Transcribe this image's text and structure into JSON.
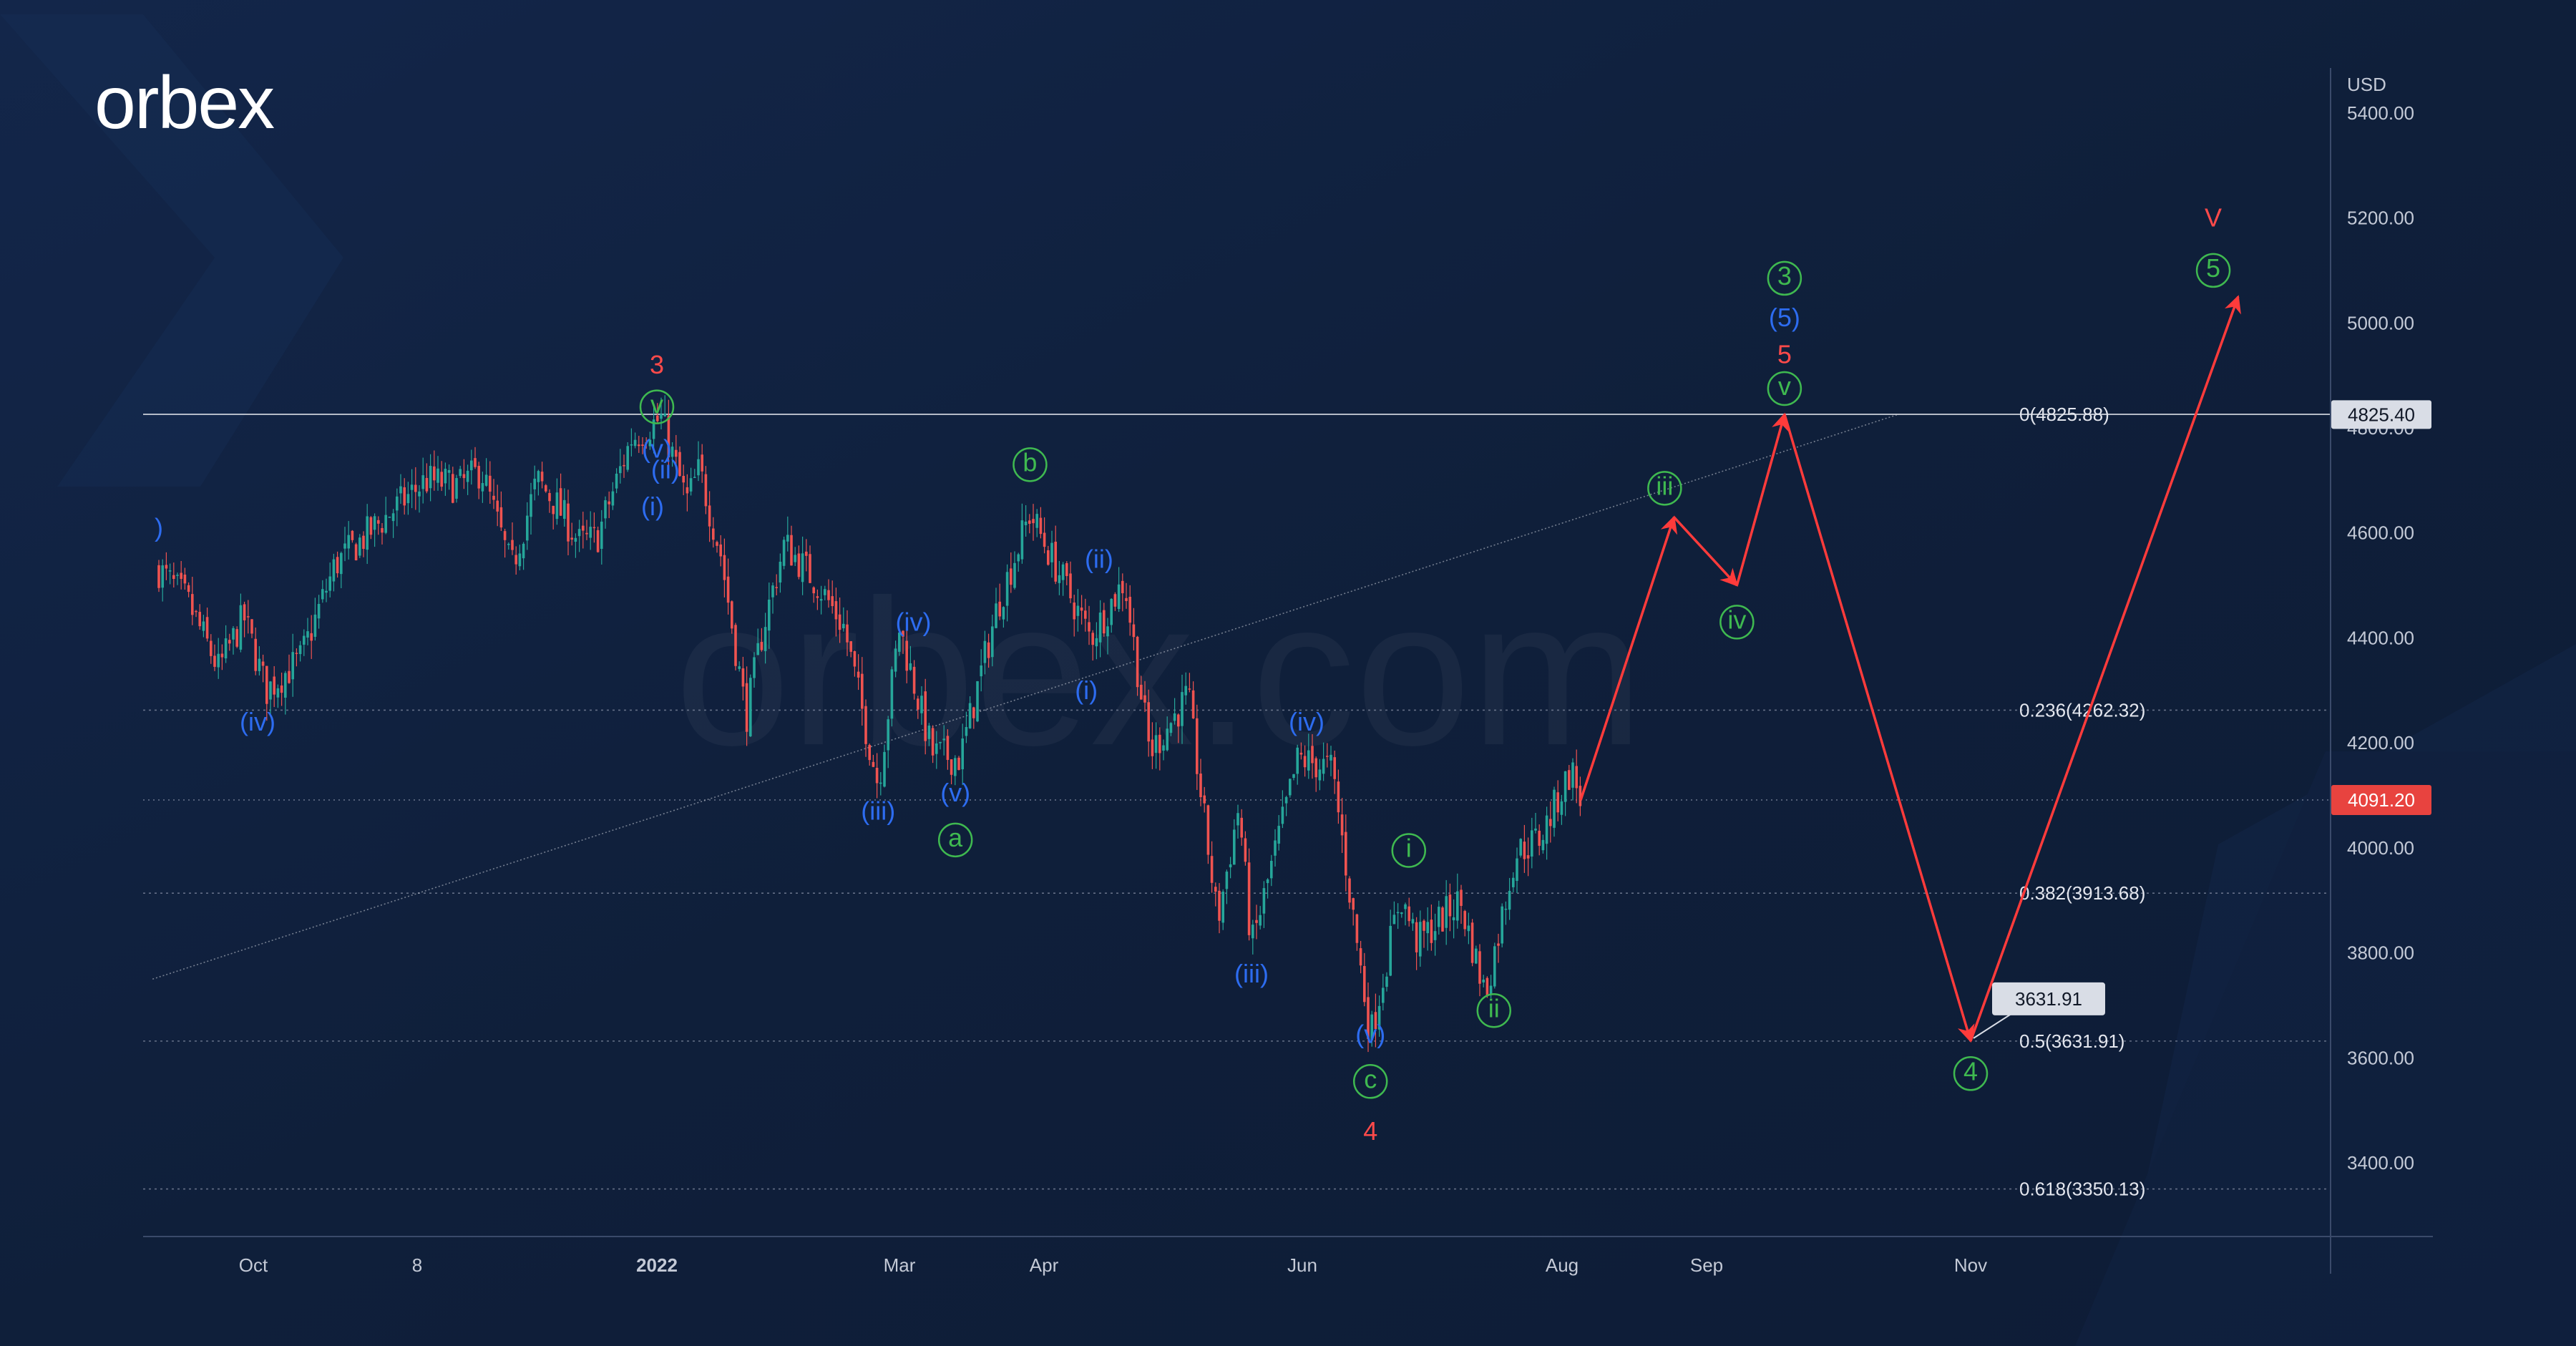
{
  "brand": {
    "logo_text": "orbex",
    "watermark": "orbex.com"
  },
  "colors": {
    "background": "#0f1f3a",
    "bull": "#26a69a",
    "bear": "#ef5350",
    "wave_red": "#ff4a4a",
    "wave_blue": "#2d6cf0",
    "wave_green": "#3fb950",
    "projection": "#ff3b3b",
    "current_price_badge": "#e8433f"
  },
  "chart_data": {
    "type": "candlestick",
    "symbol_currency": "USD",
    "y_axis": {
      "unit": "USD",
      "range": [
        3250,
        5480
      ],
      "ticks": [
        "5400.00",
        "5200.00",
        "5000.00",
        "4800.00",
        "4600.00",
        "4400.00",
        "4200.00",
        "4000.00",
        "3800.00",
        "3600.00",
        "3400.00"
      ]
    },
    "x_axis": {
      "ticks": [
        "Oct",
        "8",
        "2022",
        "Mar",
        "Apr",
        "Jun",
        "Aug",
        "Sep",
        "Nov"
      ]
    },
    "current_price": "4091.20",
    "level_badge": "4825.40",
    "fibonacci_levels": [
      {
        "label": "0(4825.88)",
        "value": 4825.88
      },
      {
        "label": "0.236(4262.32)",
        "value": 4262.32
      },
      {
        "label": "0.382(3913.68)",
        "value": 3913.68
      },
      {
        "label": "0.5(3631.91)",
        "value": 3631.91
      },
      {
        "label": "0.618(3350.13)",
        "value": 3350.13
      }
    ],
    "target_callout": "3631.91",
    "price_path": [
      {
        "date": "2021-09-01",
        "price": 4530
      },
      {
        "date": "2021-09-10",
        "price": 4470
      },
      {
        "date": "2021-09-20",
        "price": 4340
      },
      {
        "date": "2021-09-28",
        "price": 4440
      },
      {
        "date": "2021-10-04",
        "price": 4300
      },
      {
        "date": "2021-10-12",
        "price": 4360
      },
      {
        "date": "2021-10-20",
        "price": 4540
      },
      {
        "date": "2021-11-02",
        "price": 4640
      },
      {
        "date": "2021-11-10",
        "price": 4700
      },
      {
        "date": "2021-11-18",
        "price": 4690
      },
      {
        "date": "2021-11-23",
        "price": 4720
      },
      {
        "date": "2021-11-30",
        "price": 4530
      },
      {
        "date": "2021-12-06",
        "price": 4700
      },
      {
        "date": "2021-12-10",
        "price": 4660
      },
      {
        "date": "2021-12-16",
        "price": 4580
      },
      {
        "date": "2021-12-20",
        "price": 4590
      },
      {
        "date": "2021-12-28",
        "price": 4780
      },
      {
        "date": "2022-01-04",
        "price": 4818
      },
      {
        "date": "2022-01-10",
        "price": 4660
      },
      {
        "date": "2022-01-13",
        "price": 4720
      },
      {
        "date": "2022-01-18",
        "price": 4560
      },
      {
        "date": "2022-01-24",
        "price": 4250
      },
      {
        "date": "2022-01-28",
        "price": 4420
      },
      {
        "date": "2022-02-02",
        "price": 4580
      },
      {
        "date": "2022-02-10",
        "price": 4500
      },
      {
        "date": "2022-02-16",
        "price": 4420
      },
      {
        "date": "2022-02-24",
        "price": 4120
      },
      {
        "date": "2022-03-01",
        "price": 4420
      },
      {
        "date": "2022-03-08",
        "price": 4180
      },
      {
        "date": "2022-03-14",
        "price": 4170
      },
      {
        "date": "2022-03-22",
        "price": 4460
      },
      {
        "date": "2022-03-29",
        "price": 4637
      },
      {
        "date": "2022-04-06",
        "price": 4500
      },
      {
        "date": "2022-04-12",
        "price": 4400
      },
      {
        "date": "2022-04-20",
        "price": 4510
      },
      {
        "date": "2022-04-26",
        "price": 4180
      },
      {
        "date": "2022-05-05",
        "price": 4290
      },
      {
        "date": "2022-05-12",
        "price": 3860
      },
      {
        "date": "2022-05-17",
        "price": 4080
      },
      {
        "date": "2022-05-20",
        "price": 3810
      },
      {
        "date": "2022-05-31",
        "price": 4170
      },
      {
        "date": "2022-06-08",
        "price": 4150
      },
      {
        "date": "2022-06-17",
        "price": 3640
      },
      {
        "date": "2022-06-24",
        "price": 3910
      },
      {
        "date": "2022-06-28",
        "price": 3820
      },
      {
        "date": "2022-07-08",
        "price": 3900
      },
      {
        "date": "2022-07-14",
        "price": 3720
      },
      {
        "date": "2022-07-21",
        "price": 3990
      },
      {
        "date": "2022-07-27",
        "price": 4020
      },
      {
        "date": "2022-08-03",
        "price": 4150
      },
      {
        "date": "2022-08-05",
        "price": 4091
      }
    ],
    "projection": [
      {
        "date": "2022-08-05",
        "price": 4091
      },
      {
        "date": "2022-08-25",
        "price": 4630
      },
      {
        "date": "2022-09-08",
        "price": 4500
      },
      {
        "date": "2022-09-19",
        "price": 4826
      },
      {
        "date": "2022-11-01",
        "price": 3632
      },
      {
        "date": "2022-12-14",
        "price": 5050
      }
    ],
    "trendline": [
      {
        "date": "2021-08-30",
        "price": 3750
      },
      {
        "date": "2022-10-15",
        "price": 4825
      }
    ],
    "wave_labels": [
      {
        "text": "3",
        "style": "plain",
        "color": "red",
        "date": "2022-01-03",
        "price": 4920
      },
      {
        "text": "v",
        "style": "circle",
        "color": "green",
        "date": "2022-01-03",
        "price": 4840
      },
      {
        "text": "(v)",
        "style": "plain",
        "color": "blue",
        "date": "2022-01-03",
        "price": 4760
      },
      {
        "text": "(ii)",
        "style": "plain",
        "color": "blue",
        "date": "2022-01-05",
        "price": 4720
      },
      {
        "text": "(i)",
        "style": "plain",
        "color": "blue",
        "date": "2022-01-02",
        "price": 4650
      },
      {
        "text": ")",
        "style": "plain",
        "color": "blue",
        "date": "2021-09-01",
        "price": 4610
      },
      {
        "text": "(iv)",
        "style": "plain",
        "color": "blue",
        "date": "2021-10-02",
        "price": 4240
      },
      {
        "text": "(iii)",
        "style": "plain",
        "color": "blue",
        "date": "2022-02-24",
        "price": 4070
      },
      {
        "text": "(iv)",
        "style": "plain",
        "color": "blue",
        "date": "2022-03-04",
        "price": 4430
      },
      {
        "text": "(v)",
        "style": "plain",
        "color": "blue",
        "date": "2022-03-13",
        "price": 4105
      },
      {
        "text": "a",
        "style": "circle",
        "color": "green",
        "date": "2022-03-13",
        "price": 4015
      },
      {
        "text": "b",
        "style": "circle",
        "color": "green",
        "date": "2022-03-29",
        "price": 4730
      },
      {
        "text": "(ii)",
        "style": "plain",
        "color": "blue",
        "date": "2022-04-14",
        "price": 4550
      },
      {
        "text": "(i)",
        "style": "plain",
        "color": "blue",
        "date": "2022-04-11",
        "price": 4300
      },
      {
        "text": "(iv)",
        "style": "plain",
        "color": "blue",
        "date": "2022-06-02",
        "price": 4240
      },
      {
        "text": "(iii)",
        "style": "plain",
        "color": "blue",
        "date": "2022-05-20",
        "price": 3760
      },
      {
        "text": "(v)",
        "style": "plain",
        "color": "blue",
        "date": "2022-06-17",
        "price": 3645
      },
      {
        "text": "c",
        "style": "circle",
        "color": "green",
        "date": "2022-06-17",
        "price": 3555
      },
      {
        "text": "4",
        "style": "plain",
        "color": "red",
        "date": "2022-06-17",
        "price": 3460
      },
      {
        "text": "i",
        "style": "circle",
        "color": "green",
        "date": "2022-06-26",
        "price": 3995
      },
      {
        "text": "ii",
        "style": "circle",
        "color": "green",
        "date": "2022-07-16",
        "price": 3690
      },
      {
        "text": "iii",
        "style": "circle",
        "color": "green",
        "date": "2022-08-23",
        "price": 4685
      },
      {
        "text": "iv",
        "style": "circle",
        "color": "green",
        "date": "2022-09-08",
        "price": 4430
      },
      {
        "text": "3",
        "style": "circle",
        "color": "green",
        "date": "2022-09-19",
        "price": 5085
      },
      {
        "text": "(5)",
        "style": "plain",
        "color": "blue",
        "date": "2022-09-19",
        "price": 5010
      },
      {
        "text": "5",
        "style": "plain",
        "color": "red",
        "date": "2022-09-19",
        "price": 4940
      },
      {
        "text": "v",
        "style": "circle",
        "color": "green",
        "date": "2022-09-19",
        "price": 4875
      },
      {
        "text": "4",
        "style": "circle",
        "color": "green",
        "date": "2022-11-01",
        "price": 3570
      },
      {
        "text": "V",
        "style": "plain",
        "color": "red",
        "date": "2022-12-10",
        "price": 5200
      },
      {
        "text": "5",
        "style": "circle",
        "color": "green",
        "date": "2022-12-10",
        "price": 5100
      }
    ]
  }
}
